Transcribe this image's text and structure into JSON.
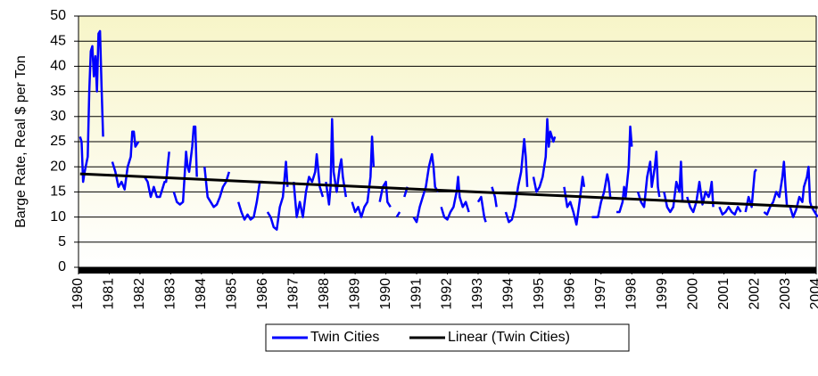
{
  "chart_data": {
    "type": "line",
    "y_label": "Barge Rate, Real $ per Ton",
    "xlim": [
      1980,
      2004
    ],
    "xticks": [
      1980,
      1981,
      1982,
      1983,
      1984,
      1985,
      1986,
      1987,
      1988,
      1989,
      1990,
      1991,
      1992,
      1993,
      1994,
      1995,
      1996,
      1997,
      1998,
      1999,
      2000,
      2001,
      2002,
      2003,
      2004
    ],
    "ylim": [
      0,
      50
    ],
    "yticks": [
      0,
      5,
      10,
      15,
      20,
      25,
      30,
      35,
      40,
      45,
      50
    ],
    "grid": true,
    "legend": "bottom",
    "series": [
      {
        "name": "Twin Cities",
        "color": "#0000ff",
        "x": [
          1980.05,
          1980.1,
          1980.15,
          1980.2,
          1980.3,
          1980.35,
          1980.4,
          1980.45,
          1980.5,
          1980.55,
          1980.6,
          1980.65,
          1980.7,
          1980.75,
          1980.8,
          1980.9,
          1981.1,
          1981.2,
          1981.3,
          1981.4,
          1981.5,
          1981.6,
          1981.7,
          1981.75,
          1981.8,
          1981.85,
          1981.95,
          1982.05,
          1982.15,
          1982.25,
          1982.35,
          1982.45,
          1982.55,
          1982.65,
          1982.8,
          1982.85,
          1982.95,
          1983.0,
          1983.1,
          1983.2,
          1983.3,
          1983.4,
          1983.5,
          1983.55,
          1983.6,
          1983.7,
          1983.75,
          1983.8,
          1983.85,
          1983.95,
          1984.1,
          1984.2,
          1984.3,
          1984.4,
          1984.5,
          1984.6,
          1984.7,
          1984.8,
          1984.9,
          1985.0,
          1985.2,
          1985.3,
          1985.4,
          1985.5,
          1985.6,
          1985.7,
          1985.8,
          1985.9,
          1986.0,
          1986.05,
          1986.15,
          1986.25,
          1986.35,
          1986.45,
          1986.55,
          1986.65,
          1986.75,
          1986.8,
          1986.9,
          1987.0,
          1987.1,
          1987.2,
          1987.3,
          1987.4,
          1987.5,
          1987.6,
          1987.7,
          1987.75,
          1987.85,
          1987.95,
          1988.0,
          1988.05,
          1988.15,
          1988.2,
          1988.25,
          1988.3,
          1988.4,
          1988.5,
          1988.55,
          1988.6,
          1988.7,
          1988.8,
          1988.9,
          1989.0,
          1989.1,
          1989.2,
          1989.3,
          1989.4,
          1989.5,
          1989.55,
          1989.6,
          1989.7,
          1989.8,
          1989.9,
          1990.0,
          1990.05,
          1990.15,
          1990.25,
          1990.35,
          1990.45,
          1990.5,
          1990.6,
          1990.7,
          1990.8,
          1990.9,
          1991.0,
          1991.1,
          1991.2,
          1991.3,
          1991.4,
          1991.5,
          1991.55,
          1991.6,
          1991.7,
          1991.75,
          1991.8,
          1991.9,
          1992.0,
          1992.1,
          1992.2,
          1992.3,
          1992.35,
          1992.4,
          1992.5,
          1992.6,
          1992.7,
          1992.85,
          1993.0,
          1993.1,
          1993.2,
          1993.25,
          1993.35,
          1993.45,
          1993.55,
          1993.6,
          1993.75,
          1993.9,
          1994.0,
          1994.1,
          1994.2,
          1994.3,
          1994.4,
          1994.5,
          1994.55,
          1994.6,
          1994.7,
          1994.8,
          1994.9,
          1995.0,
          1995.1,
          1995.2,
          1995.25,
          1995.3,
          1995.35,
          1995.45,
          1995.5,
          1995.65,
          1995.8,
          1995.9,
          1996.0,
          1996.1,
          1996.2,
          1996.3,
          1996.4,
          1996.45,
          1996.6,
          1996.7,
          1996.8,
          1996.9,
          1997.0,
          1997.1,
          1997.2,
          1997.25,
          1997.3,
          1997.4,
          1997.5,
          1997.6,
          1997.7,
          1997.75,
          1997.8,
          1997.9,
          1997.95,
          1998.0,
          1998.1,
          1998.2,
          1998.3,
          1998.4,
          1998.5,
          1998.6,
          1998.65,
          1998.75,
          1998.8,
          1998.85,
          1998.9,
          1998.95,
          1999.05,
          1999.15,
          1999.25,
          1999.35,
          1999.45,
          1999.55,
          1999.6,
          1999.65,
          1999.7,
          1999.8,
          1999.9,
          2000.0,
          2000.1,
          2000.2,
          2000.3,
          2000.4,
          2000.5,
          2000.55,
          2000.6,
          2000.65,
          2000.75,
          2000.85,
          2000.95,
          2001.05,
          2001.15,
          2001.25,
          2001.35,
          2001.45,
          2001.55,
          2001.6,
          2001.7,
          2001.8,
          2001.9,
          2002.0,
          2002.05,
          2002.2,
          2002.3,
          2002.4,
          2002.5,
          2002.6,
          2002.7,
          2002.8,
          2002.9,
          2002.95,
          2003.0,
          2003.05,
          2003.1,
          2003.15,
          2003.25,
          2003.35,
          2003.45,
          2003.55,
          2003.6,
          2003.7,
          2003.75,
          2003.8,
          2003.85,
          2003.95,
          2004.05
        ],
        "values": [
          26,
          25,
          17,
          19,
          22,
          35,
          43,
          44,
          38,
          42,
          35,
          46.5,
          47,
          36,
          26,
          null,
          21,
          19,
          16,
          17,
          15.5,
          20,
          22,
          27,
          27,
          24,
          25,
          null,
          18,
          17,
          14,
          16,
          14,
          14,
          17,
          17,
          23,
          null,
          15,
          13,
          12.5,
          13,
          23,
          20,
          19,
          24,
          28,
          28,
          18,
          null,
          20,
          14,
          13,
          12,
          12.5,
          14,
          16,
          17,
          19,
          null,
          13,
          11,
          9.5,
          10.5,
          9.5,
          10,
          13,
          17,
          17,
          null,
          11,
          10,
          8,
          7.5,
          12,
          14,
          21,
          16,
          null,
          17,
          10,
          13,
          10,
          15,
          18,
          17,
          19,
          22.5,
          16,
          14,
          null,
          17,
          12.5,
          16,
          29.5,
          19,
          15,
          20,
          21.5,
          18,
          14,
          null,
          13,
          11,
          12,
          10,
          12,
          13,
          18,
          26,
          20,
          null,
          13,
          16,
          17,
          13,
          12,
          null,
          10,
          11,
          null,
          14,
          16,
          null,
          10,
          9,
          12,
          14,
          16,
          20,
          22.5,
          20,
          16,
          15,
          null,
          12,
          10,
          9.5,
          11,
          12,
          15,
          18,
          14,
          12,
          13,
          11,
          null,
          13,
          14,
          10,
          9,
          null,
          16,
          14,
          12,
          null,
          11,
          9,
          9.5,
          12,
          16,
          19,
          25.5,
          22,
          16,
          null,
          18,
          15,
          16,
          18,
          22,
          29.5,
          24,
          27,
          25,
          26,
          null,
          16,
          12,
          13,
          11,
          8.5,
          13,
          18,
          16,
          null,
          10,
          10,
          10,
          13,
          15,
          18.5,
          17,
          14,
          null,
          11,
          11,
          13,
          16,
          14,
          20,
          28,
          24,
          null,
          15,
          13,
          12,
          18,
          21,
          16,
          20,
          23,
          16,
          14,
          null,
          15,
          12,
          11,
          12,
          17,
          15,
          21,
          13,
          null,
          14,
          12,
          11,
          13,
          17,
          12.5,
          15,
          14,
          15,
          17,
          12,
          null,
          12,
          10.5,
          11,
          12,
          11,
          10.5,
          12,
          11,
          null,
          11,
          14,
          12,
          19,
          19.5,
          null,
          11,
          10.5,
          12,
          13,
          15,
          14,
          18,
          21,
          16,
          12,
          null,
          12,
          10,
          11.5,
          14,
          13,
          16,
          18,
          20,
          13,
          12,
          11,
          10
        ]
      },
      {
        "name": "Linear (Twin Cities)",
        "color": "#000000",
        "x": [
          1980.05,
          2004.05
        ],
        "values": [
          18.6,
          11.9
        ]
      }
    ]
  }
}
